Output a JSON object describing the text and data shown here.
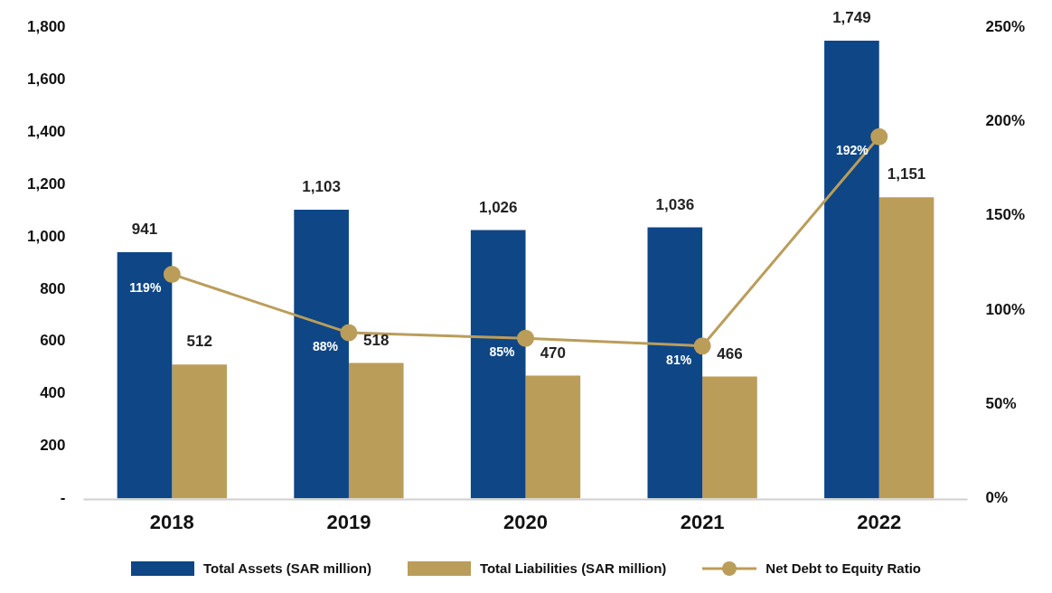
{
  "chart_data": {
    "type": "bar",
    "categories": [
      "2018",
      "2019",
      "2020",
      "2021",
      "2022"
    ],
    "series": [
      {
        "name": "Total Assets (SAR million)",
        "color": "#0e4686",
        "values": [
          941,
          1103,
          1026,
          1036,
          1749
        ],
        "value_labels": [
          "941",
          "1,103",
          "1,026",
          "1,036",
          "1,749"
        ]
      },
      {
        "name": "Total Liabilities (SAR million)",
        "color": "#bb9d5a",
        "values": [
          512,
          518,
          470,
          466,
          1151
        ],
        "value_labels": [
          "512",
          "518",
          "470",
          "466",
          "1,151"
        ]
      },
      {
        "name": "Net Debt to Equity Ratio",
        "type": "line",
        "axis": "y2",
        "color": "#bb9d5a",
        "values": [
          119,
          88,
          85,
          81,
          192
        ],
        "value_labels": [
          "119%",
          "88%",
          "85%",
          "81%",
          "192%"
        ]
      }
    ],
    "ylim": [
      0,
      1800
    ],
    "yticks": [
      {
        "value": 0,
        "label": "-"
      },
      {
        "value": 200,
        "label": "200"
      },
      {
        "value": 400,
        "label": "400"
      },
      {
        "value": 600,
        "label": "600"
      },
      {
        "value": 800,
        "label": "800"
      },
      {
        "value": 1000,
        "label": "1,000"
      },
      {
        "value": 1200,
        "label": "1,200"
      },
      {
        "value": 1400,
        "label": "1,400"
      },
      {
        "value": 1600,
        "label": "1,600"
      },
      {
        "value": 1800,
        "label": "1,800"
      }
    ],
    "y2lim": [
      0,
      250
    ],
    "y2ticks": [
      {
        "value": 0,
        "label": "0%"
      },
      {
        "value": 50,
        "label": "50%"
      },
      {
        "value": 100,
        "label": "100%"
      },
      {
        "value": 150,
        "label": "150%"
      },
      {
        "value": 200,
        "label": "200%"
      },
      {
        "value": 250,
        "label": "250%"
      }
    ],
    "grid": false,
    "legend": "bottom",
    "marker": "circle",
    "line_style": "solid"
  }
}
